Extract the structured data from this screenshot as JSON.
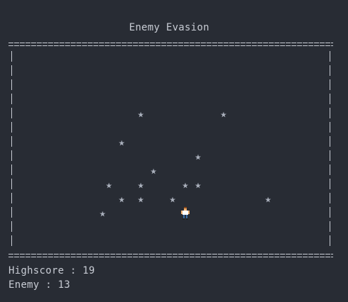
{
  "game": {
    "title": "Enemy Evasion",
    "highscore_label": "Highscore : ",
    "highscore_value": "19",
    "enemy_label": "Enemy : ",
    "enemy_value": "13"
  },
  "icons": {
    "enemy": "star-icon",
    "player": "player-sprite-icon"
  },
  "colors": {
    "background": "#282c34",
    "text": "#c8ccd4",
    "enemy": "#aab0bc",
    "player_skin": "#f0b070",
    "player_shirt": "#ffffff"
  }
}
